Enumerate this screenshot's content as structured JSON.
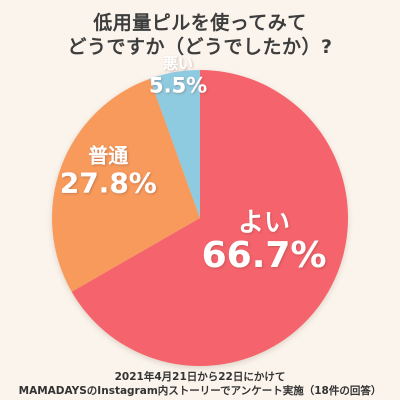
{
  "title_lines": [
    "低用量ピルを使ってみて",
    "どうですか（どうでしたか）?"
  ],
  "footer_lines": [
    "2021年4月21日から22日にかけて",
    "MAMADAYSのInstagram内ストーリーでアンケート実施（18件の回答）"
  ],
  "colors": {
    "background": "#fbf4ec",
    "label_text": "#ffffff"
  },
  "chart_data": {
    "type": "pie",
    "title": "低用量ピルを使ってみて どうですか（どうでしたか）?",
    "start": "12 o'clock, clockwise",
    "legend": "none",
    "slices": [
      {
        "label": "よい",
        "value": 66.7,
        "display": "66.7%",
        "color": "#f5646c"
      },
      {
        "label": "普通",
        "value": 27.8,
        "display": "27.8%",
        "color": "#f79a5c"
      },
      {
        "label": "悪い",
        "value": 5.5,
        "display": "5.5%",
        "color": "#8fcbe0"
      }
    ]
  }
}
